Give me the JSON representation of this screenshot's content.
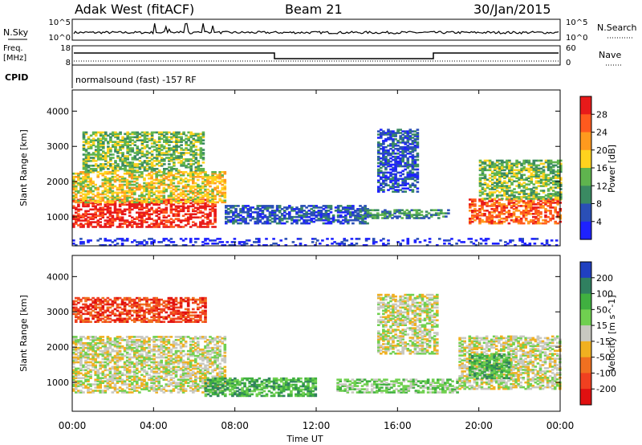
{
  "header": {
    "station": "Adak West (fitACF)",
    "beam": "Beam 21",
    "date": "30/Jan/2015"
  },
  "noise_panel": {
    "left_label": "N.Sky",
    "right_label": "N.Search",
    "left_ticks": [
      "10^5",
      "10^0"
    ],
    "right_ticks": [
      "10^5",
      "10^0"
    ]
  },
  "freq_panel": {
    "left_label_1": "Freq.",
    "left_label_2": "[MHz]",
    "right_label": "Nave",
    "left_ticks": [
      "18",
      "8"
    ],
    "right_ticks": [
      "60",
      "0"
    ]
  },
  "cpid": {
    "label": "CPID",
    "text": "normalsound (fast) -157 RF"
  },
  "time_axis": {
    "label": "Time UT",
    "ticks": [
      "00:00",
      "04:00",
      "08:00",
      "12:00",
      "16:00",
      "20:00",
      "00:00"
    ]
  },
  "chart_data": [
    {
      "type": "heatmap",
      "quantity": "Power",
      "ylabel": "Slant Range [km]",
      "xlabel": "Time UT",
      "ylim": [
        180,
        4600
      ],
      "yticks": [
        1000,
        2000,
        3000,
        4000
      ],
      "colorbar_label": "Power [dB]",
      "colorbar_ticks": [
        "4",
        "8",
        "12",
        "16",
        "20",
        "24",
        "28"
      ],
      "colorbar_colors": [
        "#1e22ff",
        "#2a4fb6",
        "#3a8a62",
        "#5fb44e",
        "#ffd21e",
        "#ff9a1e",
        "#ff5a1e",
        "#e81a1a"
      ],
      "regions": [
        {
          "t0": 0.0,
          "t1": 7.0,
          "r0": 700,
          "r1": 1500,
          "level": 7
        },
        {
          "t0": 0.0,
          "t1": 7.5,
          "r0": 1400,
          "r1": 2300,
          "level": 4
        },
        {
          "t0": 0.5,
          "t1": 6.5,
          "r0": 2300,
          "r1": 3400,
          "level": 3
        },
        {
          "t0": 7.5,
          "t1": 14.5,
          "r0": 800,
          "r1": 1300,
          "level": 1
        },
        {
          "t0": 14.0,
          "t1": 18.5,
          "r0": 950,
          "r1": 1200,
          "level": 2
        },
        {
          "t0": 15.0,
          "t1": 17.0,
          "r0": 1700,
          "r1": 3500,
          "level": 1
        },
        {
          "t0": 19.5,
          "t1": 24.0,
          "r0": 800,
          "r1": 1500,
          "level": 6
        },
        {
          "t0": 20.0,
          "t1": 24.0,
          "r0": 1500,
          "r1": 2600,
          "level": 3
        },
        {
          "t0": 0.0,
          "t1": 24.0,
          "r0": 180,
          "r1": 400,
          "level": 0
        }
      ]
    },
    {
      "type": "heatmap",
      "quantity": "Velocity",
      "ylabel": "Slant Range [km]",
      "xlabel": "Time UT",
      "ylim": [
        180,
        4600
      ],
      "yticks": [
        1000,
        2000,
        3000,
        4000
      ],
      "colorbar_label": "Velocity [m s^-1]",
      "colorbar_ticks": [
        "200",
        "100",
        "50",
        "15",
        "-15",
        "-50",
        "-100",
        "-200"
      ],
      "colorbar_colors": [
        "#2040c0",
        "#308060",
        "#40b040",
        "#70d050",
        "#c8c8c0",
        "#f0b020",
        "#f07020",
        "#f04020",
        "#e01010"
      ],
      "regions": [
        {
          "t0": 0.0,
          "t1": 7.5,
          "r0": 700,
          "r1": 2300,
          "level": 4
        },
        {
          "t0": 0.0,
          "t1": 6.5,
          "r0": 2700,
          "r1": 3400,
          "level": 7
        },
        {
          "t0": 6.5,
          "t1": 12.0,
          "r0": 600,
          "r1": 1100,
          "level": 2
        },
        {
          "t0": 13.0,
          "t1": 19.0,
          "r0": 700,
          "r1": 1100,
          "level": 3
        },
        {
          "t0": 15.0,
          "t1": 18.0,
          "r0": 1800,
          "r1": 3500,
          "level": 4
        },
        {
          "t0": 19.0,
          "t1": 24.0,
          "r0": 800,
          "r1": 2300,
          "level": 4
        },
        {
          "t0": 19.5,
          "t1": 21.5,
          "r0": 1100,
          "r1": 1800,
          "level": 2
        }
      ]
    }
  ]
}
